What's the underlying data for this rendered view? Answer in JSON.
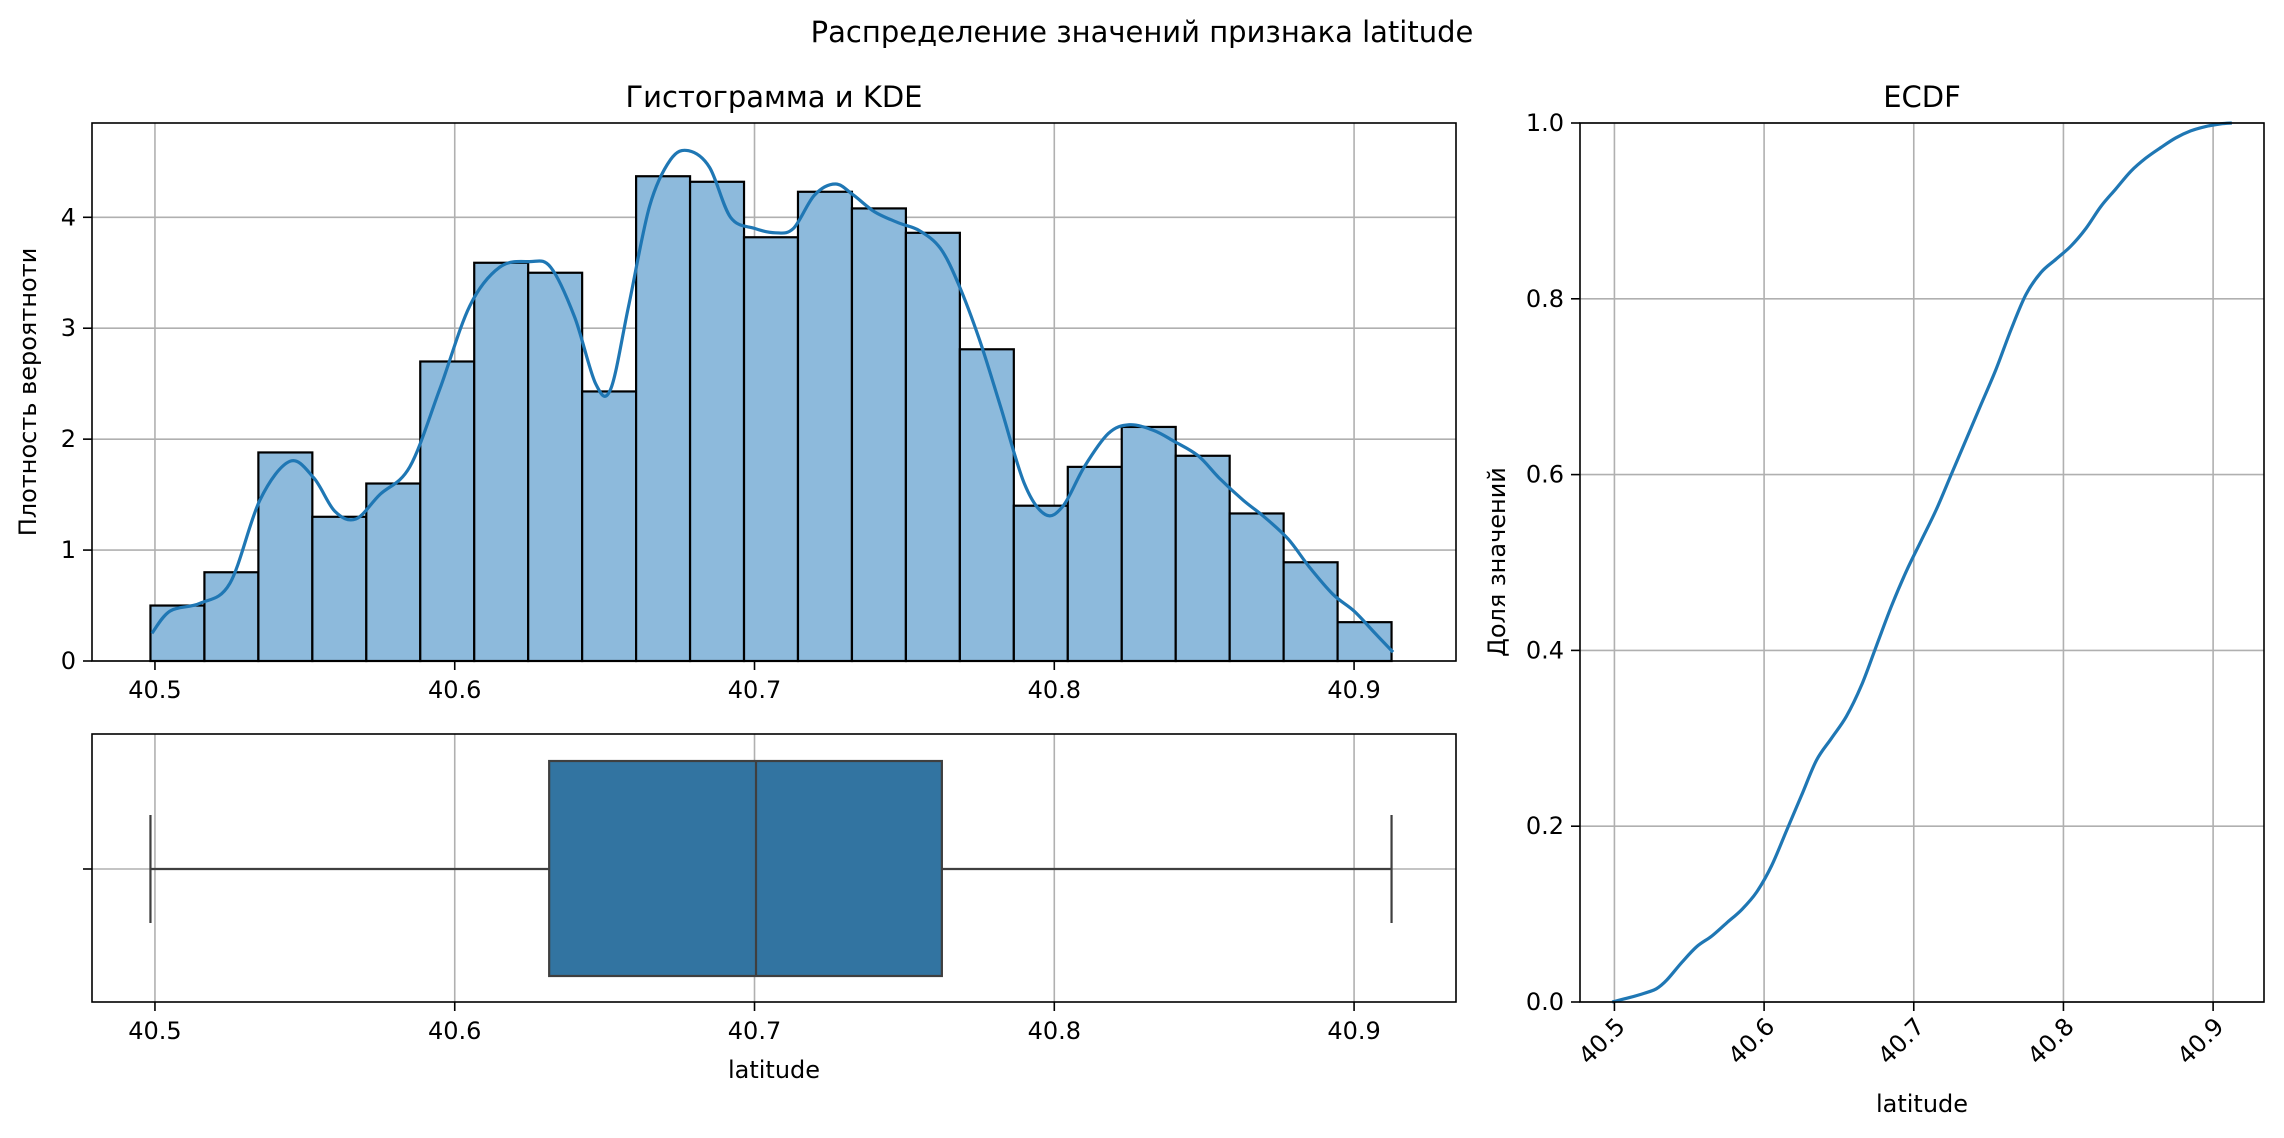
{
  "suptitle": "Распределение значений признака latitude",
  "colors": {
    "bar_fill": "#8dbadc",
    "bar_edge": "#000000",
    "line": "#1f77b4",
    "box_fill": "#3274a1",
    "box_edge": "#3f3f3f",
    "grid": "#b0b0b0"
  },
  "chart_data": [
    {
      "type": "bar",
      "title": "Гистограмма и KDE",
      "xlabel": "",
      "ylabel": "Плотность вероятноти",
      "xlim": [
        40.479,
        40.934
      ],
      "ylim": [
        0,
        4.85
      ],
      "grid": true,
      "xticks": [
        40.5,
        40.6,
        40.7,
        40.8,
        40.9
      ],
      "xtick_labels": [
        "40.5",
        "40.6",
        "40.7",
        "40.8",
        "40.9"
      ],
      "yticks": [
        0,
        1,
        2,
        3,
        4
      ],
      "ytick_labels": [
        "0",
        "1",
        "2",
        "3",
        "4"
      ],
      "bin_start": 40.4985,
      "bin_width": 0.018,
      "values": [
        0.5,
        0.8,
        1.88,
        1.3,
        1.6,
        2.7,
        3.59,
        3.5,
        2.43,
        4.37,
        4.32,
        3.82,
        4.23,
        4.08,
        3.86,
        2.81,
        1.4,
        1.75,
        2.11,
        1.85,
        1.33,
        0.89,
        0.35
      ],
      "kde": {
        "x": [
          40.499,
          40.505,
          40.515,
          40.525,
          40.535,
          40.545,
          40.553,
          40.56,
          40.567,
          40.575,
          40.585,
          40.595,
          40.605,
          40.615,
          40.625,
          40.632,
          40.64,
          40.647,
          40.652,
          40.658,
          40.665,
          40.672,
          40.678,
          40.685,
          40.692,
          40.7,
          40.707,
          40.713,
          40.72,
          40.727,
          40.733,
          40.74,
          40.748,
          40.755,
          40.762,
          40.768,
          40.775,
          40.782,
          40.79,
          40.797,
          40.803,
          40.81,
          40.818,
          40.825,
          40.833,
          40.84,
          40.848,
          40.855,
          40.863,
          40.87,
          40.878,
          40.885,
          40.893,
          40.9,
          40.907,
          40.913
        ],
        "y": [
          0.25,
          0.45,
          0.52,
          0.7,
          1.45,
          1.8,
          1.65,
          1.35,
          1.28,
          1.5,
          1.75,
          2.45,
          3.2,
          3.55,
          3.6,
          3.55,
          3.1,
          2.5,
          2.45,
          3.2,
          4.1,
          4.52,
          4.6,
          4.45,
          4.0,
          3.9,
          3.86,
          3.9,
          4.2,
          4.3,
          4.2,
          4.05,
          3.95,
          3.88,
          3.72,
          3.4,
          2.9,
          2.3,
          1.6,
          1.32,
          1.4,
          1.75,
          2.05,
          2.13,
          2.08,
          1.98,
          1.85,
          1.65,
          1.45,
          1.3,
          1.1,
          0.85,
          0.6,
          0.45,
          0.25,
          0.08
        ]
      }
    },
    {
      "type": "box",
      "title": "",
      "xlabel": "latitude",
      "ylabel": "",
      "xlim": [
        40.479,
        40.934
      ],
      "grid": true,
      "xticks": [
        40.5,
        40.6,
        40.7,
        40.8,
        40.9
      ],
      "xtick_labels": [
        "40.5",
        "40.6",
        "40.7",
        "40.8",
        "40.9"
      ],
      "whisker_low": 40.4985,
      "q1": 40.6315,
      "median": 40.7005,
      "q3": 40.7625,
      "whisker_high": 40.9125
    },
    {
      "type": "line",
      "title": "ECDF",
      "xlabel": "latitude",
      "ylabel": "Доля значений",
      "xlim": [
        40.477,
        40.934
      ],
      "ylim": [
        0,
        1
      ],
      "grid": true,
      "xticks": [
        40.5,
        40.6,
        40.7,
        40.8,
        40.9
      ],
      "xtick_labels": [
        "40.5",
        "40.6",
        "40.7",
        "40.8",
        "40.9"
      ],
      "yticks": [
        0,
        0.2,
        0.4,
        0.6,
        0.8,
        1.0
      ],
      "ytick_labels": [
        "0.0",
        "0.2",
        "0.4",
        "0.6",
        "0.8",
        "1.0"
      ],
      "x": [
        40.4985,
        40.51,
        40.52,
        40.528,
        40.535,
        40.545,
        40.555,
        40.565,
        40.575,
        40.585,
        40.595,
        40.605,
        40.615,
        40.625,
        40.635,
        40.645,
        40.655,
        40.665,
        40.675,
        40.685,
        40.695,
        40.705,
        40.715,
        40.725,
        40.735,
        40.745,
        40.755,
        40.765,
        40.775,
        40.785,
        40.795,
        40.805,
        40.815,
        40.825,
        40.835,
        40.845,
        40.855,
        40.865,
        40.875,
        40.885,
        40.895,
        40.905,
        40.9125
      ],
      "y": [
        0.0,
        0.005,
        0.01,
        0.015,
        0.025,
        0.045,
        0.063,
        0.075,
        0.09,
        0.105,
        0.125,
        0.155,
        0.195,
        0.235,
        0.275,
        0.3,
        0.325,
        0.36,
        0.405,
        0.45,
        0.49,
        0.525,
        0.56,
        0.6,
        0.64,
        0.68,
        0.72,
        0.765,
        0.805,
        0.83,
        0.845,
        0.86,
        0.88,
        0.905,
        0.925,
        0.945,
        0.96,
        0.972,
        0.983,
        0.991,
        0.996,
        0.999,
        1.0
      ]
    }
  ]
}
